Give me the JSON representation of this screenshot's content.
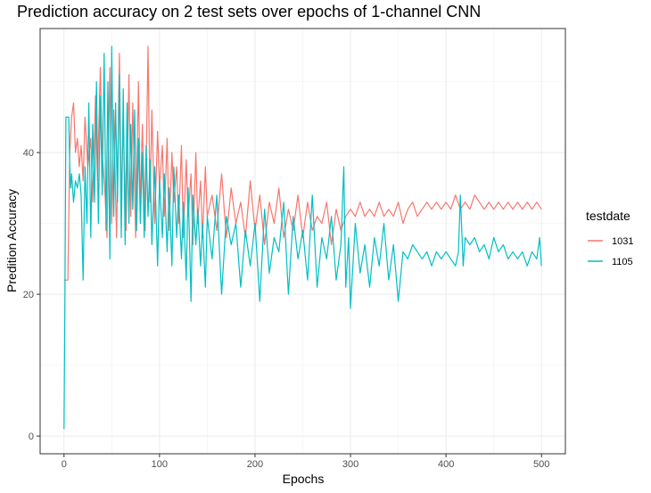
{
  "chart_data": {
    "type": "line",
    "title": "Prediction accuracy on 2 test sets over epochs of 1-channel CNN",
    "xlabel": "Epochs",
    "ylabel": "Predition Accuracy",
    "xlim": [
      -25,
      525
    ],
    "ylim": [
      -2.5,
      57.5
    ],
    "x_ticks": [
      0,
      100,
      200,
      300,
      400,
      500
    ],
    "y_ticks": [
      0,
      20,
      40
    ],
    "grid": true,
    "legend": {
      "title": "testdate",
      "placement": "right"
    },
    "series": [
      {
        "name": "1031",
        "color": "#F8766D",
        "x": [
          0,
          2,
          4,
          6,
          8,
          10,
          12,
          14,
          16,
          18,
          20,
          22,
          25,
          28,
          30,
          33,
          35,
          38,
          40,
          43,
          45,
          48,
          50,
          52,
          55,
          58,
          60,
          62,
          65,
          68,
          70,
          72,
          75,
          78,
          80,
          82,
          85,
          88,
          90,
          92,
          95,
          98,
          100,
          103,
          105,
          108,
          110,
          113,
          115,
          118,
          120,
          123,
          125,
          128,
          130,
          133,
          135,
          138,
          140,
          143,
          145,
          148,
          150,
          155,
          160,
          165,
          170,
          175,
          180,
          185,
          190,
          195,
          200,
          205,
          210,
          215,
          220,
          225,
          230,
          235,
          240,
          245,
          250,
          255,
          260,
          265,
          270,
          275,
          280,
          285,
          290,
          295,
          300,
          305,
          310,
          315,
          320,
          325,
          330,
          335,
          340,
          345,
          350,
          355,
          360,
          365,
          370,
          375,
          380,
          385,
          390,
          395,
          400,
          405,
          410,
          415,
          420,
          425,
          430,
          435,
          440,
          445,
          450,
          455,
          460,
          465,
          470,
          475,
          480,
          485,
          490,
          495,
          500
        ],
        "values": [
          22,
          22,
          22,
          40,
          45,
          47,
          40,
          42,
          38,
          41,
          36,
          45,
          38,
          42,
          33,
          48,
          36,
          52,
          40,
          34,
          28,
          52,
          30,
          46,
          28,
          54,
          33,
          44,
          29,
          51,
          31,
          47,
          28,
          50,
          32,
          44,
          29,
          55,
          33,
          46,
          30,
          43,
          35,
          41,
          31,
          42,
          29,
          40,
          33,
          38,
          30,
          41,
          28,
          39,
          31,
          37,
          27,
          40,
          30,
          36,
          28,
          38,
          31,
          34,
          29,
          37,
          28,
          35,
          30,
          33,
          28,
          36,
          29,
          34,
          27,
          33,
          30,
          35,
          28,
          32,
          29,
          34,
          28,
          33,
          29,
          31,
          30,
          33,
          27,
          32,
          29,
          31,
          32,
          31,
          33,
          31,
          32,
          31,
          33,
          31,
          32,
          31,
          33,
          30,
          32,
          33,
          31,
          32,
          33,
          32,
          33,
          32,
          33,
          32,
          34,
          32,
          33,
          32,
          34,
          33,
          32,
          33,
          32,
          33,
          32,
          33,
          32,
          33,
          32,
          33,
          32,
          33,
          32
        ]
      },
      {
        "name": "1105",
        "color": "#00BFC4",
        "x": [
          0,
          1,
          2,
          3,
          4,
          5,
          6,
          7,
          8,
          10,
          12,
          14,
          16,
          18,
          20,
          22,
          24,
          26,
          28,
          30,
          32,
          34,
          36,
          38,
          40,
          42,
          44,
          46,
          48,
          50,
          52,
          54,
          56,
          58,
          60,
          62,
          64,
          66,
          68,
          70,
          72,
          74,
          76,
          78,
          80,
          82,
          84,
          86,
          88,
          90,
          92,
          95,
          98,
          100,
          103,
          105,
          108,
          110,
          113,
          115,
          118,
          120,
          123,
          125,
          128,
          130,
          133,
          135,
          138,
          140,
          143,
          145,
          148,
          150,
          155,
          160,
          165,
          170,
          175,
          180,
          185,
          190,
          195,
          200,
          205,
          210,
          215,
          220,
          225,
          230,
          235,
          240,
          245,
          250,
          255,
          260,
          265,
          270,
          275,
          280,
          285,
          290,
          293,
          295,
          298,
          300,
          305,
          310,
          315,
          320,
          325,
          330,
          335,
          340,
          345,
          350,
          355,
          360,
          365,
          370,
          375,
          380,
          385,
          390,
          395,
          400,
          405,
          410,
          413,
          415,
          418,
          420,
          425,
          430,
          435,
          440,
          445,
          450,
          455,
          460,
          465,
          470,
          475,
          480,
          485,
          490,
          495,
          498,
          500
        ],
        "values": [
          1,
          19,
          45,
          45,
          45,
          45,
          38,
          35,
          37,
          33,
          36,
          35,
          37,
          34,
          22,
          38,
          30,
          47,
          28,
          44,
          33,
          50,
          30,
          48,
          34,
          54,
          29,
          50,
          25,
          55,
          31,
          47,
          33,
          51,
          28,
          49,
          27,
          47,
          30,
          44,
          32,
          46,
          29,
          42,
          30,
          40,
          28,
          41,
          31,
          39,
          27,
          38,
          24,
          36,
          28,
          37,
          26,
          35,
          24,
          38,
          28,
          34,
          25,
          33,
          22,
          35,
          19,
          34,
          27,
          32,
          24,
          30,
          21,
          31,
          25,
          34,
          20,
          31,
          27,
          30,
          21,
          29,
          24,
          30,
          19,
          32,
          23,
          28,
          26,
          33,
          20,
          31,
          25,
          29,
          22,
          34,
          21,
          28,
          25,
          31,
          22,
          27,
          38,
          21,
          28,
          18,
          30,
          23,
          27,
          21,
          28,
          24,
          30,
          22,
          27,
          19,
          26,
          25,
          27,
          26,
          25,
          26,
          24,
          26,
          25,
          26,
          25,
          24,
          26,
          34,
          24,
          28,
          27,
          28,
          26,
          27,
          25,
          28,
          26,
          27,
          25,
          26,
          25,
          26,
          24,
          26,
          25,
          28,
          24
        ]
      }
    ]
  }
}
